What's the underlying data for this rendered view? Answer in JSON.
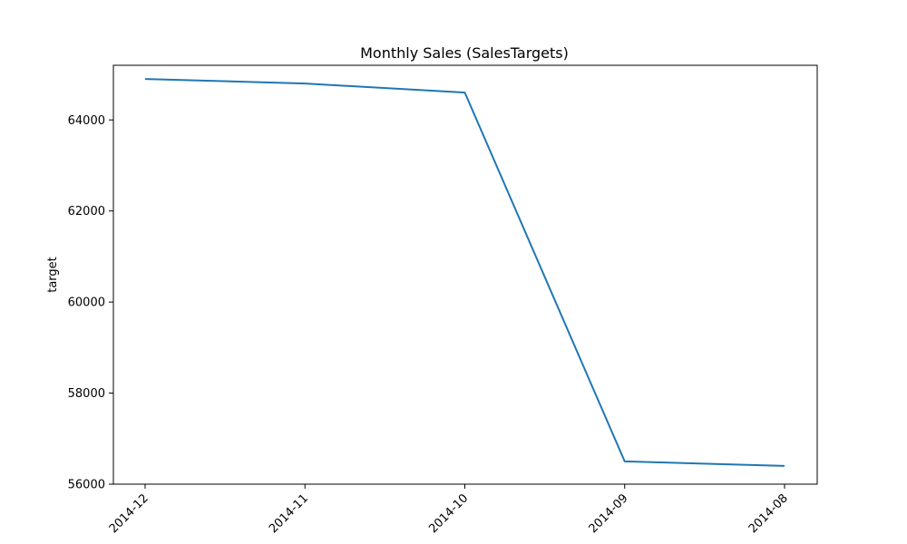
{
  "chart_data": {
    "type": "line",
    "title": "Monthly Sales (SalesTargets)",
    "xlabel": "",
    "ylabel": "target",
    "categories": [
      "2014-12",
      "2014-11",
      "2014-10",
      "2014-09",
      "2014-08"
    ],
    "series": [
      {
        "values": [
          64900,
          64800,
          64600,
          56500,
          56400
        ],
        "color": "#1f77b4"
      }
    ],
    "yticks": [
      56000,
      58000,
      60000,
      62000,
      64000
    ],
    "ylim": [
      56000,
      65200
    ],
    "grid": false,
    "legend": "none"
  }
}
